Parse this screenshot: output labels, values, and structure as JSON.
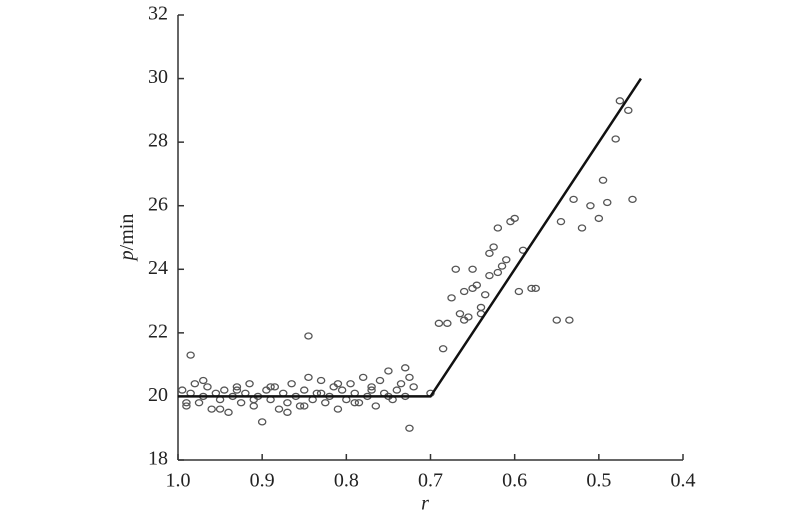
{
  "chart_data": {
    "type": "scatter",
    "xlabel": "r",
    "ylabel": {
      "symbol": "p",
      "unit": "/min"
    },
    "xlim": [
      1.0,
      0.4
    ],
    "ylim": [
      18,
      32
    ],
    "xticks": [
      {
        "value": 1,
        "label": "1.0"
      },
      0.9,
      0.8,
      0.7,
      0.6,
      0.5,
      0.4
    ],
    "yticks": [
      18,
      20,
      22,
      24,
      26,
      28,
      30,
      32
    ],
    "color": "#555555",
    "points": {
      "x": [
        0.995,
        0.99,
        0.985,
        0.98,
        0.975,
        0.97,
        0.965,
        0.96,
        0.955,
        0.95,
        0.945,
        0.94,
        0.935,
        0.93,
        0.925,
        0.92,
        0.915,
        0.91,
        0.905,
        0.9,
        0.895,
        0.89,
        0.885,
        0.88,
        0.875,
        0.87,
        0.865,
        0.86,
        0.855,
        0.85,
        0.845,
        0.84,
        0.835,
        0.83,
        0.825,
        0.82,
        0.815,
        0.81,
        0.805,
        0.8,
        0.795,
        0.79,
        0.785,
        0.78,
        0.775,
        0.77,
        0.765,
        0.76,
        0.755,
        0.75,
        0.745,
        0.74,
        0.735,
        0.73,
        0.725,
        0.72,
        0.99,
        0.97,
        0.95,
        0.93,
        0.91,
        0.89,
        0.87,
        0.85,
        0.83,
        0.81,
        0.79,
        0.77,
        0.75,
        0.73,
        0.985,
        0.845,
        0.725,
        0.7,
        0.69,
        0.685,
        0.68,
        0.675,
        0.67,
        0.665,
        0.66,
        0.66,
        0.655,
        0.65,
        0.65,
        0.645,
        0.64,
        0.64,
        0.635,
        0.63,
        0.63,
        0.625,
        0.62,
        0.62,
        0.615,
        0.61,
        0.605,
        0.6,
        0.595,
        0.59,
        0.58,
        0.575,
        0.55,
        0.545,
        0.535,
        0.53,
        0.52,
        0.51,
        0.5,
        0.495,
        0.49,
        0.48,
        0.475,
        0.465,
        0.46
      ],
      "y": [
        20.2,
        19.7,
        20.1,
        20.4,
        19.8,
        20.0,
        20.3,
        19.6,
        20.1,
        19.9,
        20.2,
        19.5,
        20.0,
        20.3,
        19.8,
        20.1,
        20.4,
        19.7,
        20.0,
        19.2,
        20.2,
        19.9,
        20.3,
        19.6,
        20.1,
        19.8,
        20.4,
        20.0,
        19.7,
        20.2,
        20.6,
        19.9,
        20.1,
        20.5,
        19.8,
        20.0,
        20.3,
        19.6,
        20.2,
        19.9,
        20.4,
        20.1,
        19.8,
        20.6,
        20.0,
        20.3,
        19.7,
        20.5,
        20.1,
        20.8,
        19.9,
        20.2,
        20.4,
        20.0,
        20.6,
        20.3,
        19.8,
        20.5,
        19.6,
        20.2,
        19.9,
        20.3,
        19.5,
        19.7,
        20.1,
        20.4,
        19.8,
        20.2,
        20.0,
        20.9,
        21.3,
        21.9,
        19.0,
        20.1,
        22.3,
        21.5,
        22.3,
        23.1,
        24.0,
        22.6,
        23.3,
        22.4,
        22.5,
        24.0,
        23.4,
        23.5,
        22.8,
        22.6,
        23.2,
        24.5,
        23.8,
        24.7,
        25.3,
        23.9,
        24.1,
        24.3,
        25.5,
        25.6,
        23.3,
        24.6,
        23.4,
        23.4,
        22.4,
        25.5,
        22.4,
        26.2,
        25.3,
        26.0,
        25.6,
        26.8,
        26.1,
        28.1,
        29.3,
        29.0,
        26.2
      ]
    },
    "fit_line": {
      "x": [
        1.0,
        0.7,
        0.45
      ],
      "y": [
        20,
        20,
        30
      ]
    }
  }
}
